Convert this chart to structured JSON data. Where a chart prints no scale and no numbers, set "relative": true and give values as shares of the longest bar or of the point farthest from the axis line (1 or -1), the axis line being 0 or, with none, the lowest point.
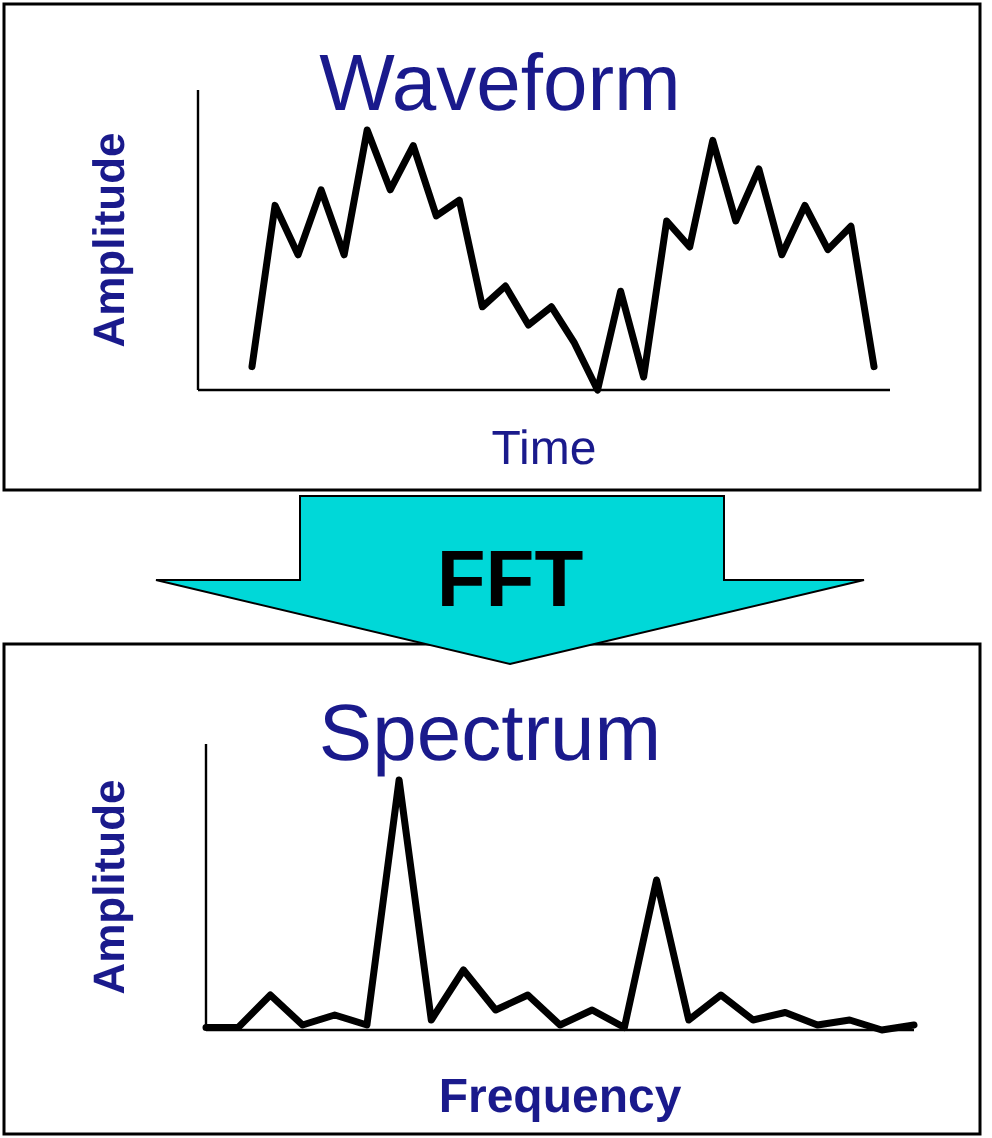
{
  "chart_data": [
    {
      "type": "line",
      "title": "Waveform",
      "xlabel": "Time",
      "ylabel": "Amplitude",
      "relative": true,
      "categories": [
        null,
        null,
        null,
        null,
        null,
        null,
        null,
        null,
        null,
        null,
        null,
        null,
        null,
        null,
        null,
        null,
        null,
        null,
        null,
        null,
        null,
        null,
        null,
        null,
        null,
        null,
        null,
        null
      ],
      "series": [
        {
          "color": "#000000",
          "values": [
            0.09,
            0.71,
            0.52,
            0.77,
            0.52,
            1,
            0.77,
            0.94,
            0.67,
            0.73,
            0.32,
            0.4,
            0.25,
            0.32,
            0.18,
            0,
            0.38,
            0.05,
            0.65,
            0.55,
            0.96,
            0.65,
            0.85,
            0.52,
            0.71,
            0.54,
            0.63,
            0.09
          ]
        }
      ]
    },
    {
      "type": "other",
      "title": "FFT"
    },
    {
      "type": "line",
      "title": "Spectrum",
      "xlabel": "Frequency",
      "ylabel": "Amplitude",
      "relative": true,
      "categories": [
        null,
        null,
        null,
        null,
        null,
        null,
        null,
        null,
        null,
        null,
        null,
        null,
        null,
        null,
        null,
        null,
        null,
        null,
        null,
        null,
        null,
        null,
        null
      ],
      "series": [
        {
          "color": "#000000",
          "values": [
            0.01,
            0.01,
            0.14,
            0.02,
            0.06,
            0.02,
            1,
            0.04,
            0.24,
            0.08,
            0.14,
            0.02,
            0.08,
            0.01,
            0.6,
            0.04,
            0.14,
            0.04,
            0.07,
            0.02,
            0.04,
            0,
            0.02
          ]
        }
      ]
    }
  ]
}
